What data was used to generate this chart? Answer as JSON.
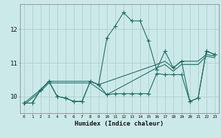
{
  "xlabel": "Humidex (Indice chaleur)",
  "bg_color": "#cce9ea",
  "grid_color": "#b0cccc",
  "line_color": "#1c6b60",
  "xlim": [
    -0.5,
    23.5
  ],
  "ylim": [
    9.5,
    12.75
  ],
  "yticks": [
    10,
    11,
    12
  ],
  "xticks": [
    0,
    1,
    2,
    3,
    4,
    5,
    6,
    7,
    8,
    9,
    10,
    11,
    12,
    13,
    14,
    15,
    16,
    17,
    18,
    19,
    20,
    21,
    22,
    23
  ],
  "line1_x": [
    0,
    1,
    2,
    3,
    4,
    5,
    6,
    7,
    8,
    9,
    10,
    11,
    12,
    13,
    14,
    15,
    16,
    17,
    18,
    19,
    20,
    21,
    22,
    23
  ],
  "line1_y": [
    9.8,
    9.8,
    10.2,
    10.45,
    10.0,
    9.95,
    9.85,
    9.85,
    10.45,
    10.35,
    11.75,
    12.1,
    12.5,
    12.25,
    12.25,
    11.65,
    10.8,
    11.35,
    10.85,
    11.05,
    9.85,
    9.95,
    11.35,
    11.25
  ],
  "line2_x": [
    0,
    1,
    2,
    3,
    4,
    5,
    6,
    7,
    8,
    9,
    10,
    11,
    12,
    13,
    14,
    15,
    16,
    17,
    18,
    19,
    20,
    21,
    22,
    23
  ],
  "line2_y": [
    9.8,
    9.8,
    10.2,
    10.45,
    10.0,
    9.95,
    9.85,
    9.85,
    10.45,
    10.35,
    10.05,
    10.08,
    10.08,
    10.08,
    10.08,
    10.08,
    10.68,
    10.65,
    10.65,
    10.65,
    9.85,
    9.95,
    11.35,
    11.25
  ],
  "line3_x": [
    0,
    2,
    3,
    8,
    9,
    16,
    17,
    18,
    19,
    21,
    22,
    23
  ],
  "line3_y": [
    9.8,
    10.2,
    10.45,
    10.45,
    10.35,
    10.95,
    11.05,
    10.85,
    11.05,
    11.05,
    11.25,
    11.2
  ],
  "line4_x": [
    0,
    2,
    3,
    8,
    10,
    16,
    17,
    18,
    19,
    21,
    22,
    23
  ],
  "line4_y": [
    9.75,
    10.15,
    10.4,
    10.4,
    10.05,
    10.85,
    10.95,
    10.75,
    10.95,
    10.95,
    11.2,
    11.15
  ]
}
